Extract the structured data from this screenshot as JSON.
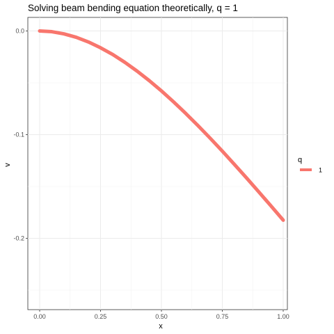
{
  "chart_data": {
    "type": "line",
    "title": "Solving beam bending equation theoretically, q = 1",
    "xlabel": "x",
    "ylabel": "v",
    "xlim": [
      0,
      1
    ],
    "ylim": [
      -0.26,
      0
    ],
    "x_ticks": [
      0,
      0.25,
      0.5,
      0.75,
      1
    ],
    "x_tick_labels": [
      "0.00",
      "0.25",
      "0.50",
      "0.75",
      "1.00"
    ],
    "y_ticks": [
      0,
      -0.1,
      -0.2
    ],
    "y_tick_labels": [
      "0.0",
      "-0.1",
      "-0.2"
    ],
    "grid": true,
    "legend": {
      "title": "q",
      "position": "right",
      "entries": [
        "1"
      ]
    },
    "series": [
      {
        "name": "1",
        "color": "#F8766D",
        "x": [
          0,
          0.05,
          0.1,
          0.15,
          0.2,
          0.25,
          0.3,
          0.35,
          0.4,
          0.45,
          0.5,
          0.55,
          0.6,
          0.65,
          0.7,
          0.75,
          0.8,
          0.85,
          0.9,
          0.95,
          1
        ],
        "y": [
          0,
          -0.0007,
          -0.0028,
          -0.0061,
          -0.0106,
          -0.0162,
          -0.0227,
          -0.0303,
          -0.0387,
          -0.0479,
          -0.0578,
          -0.0684,
          -0.0796,
          -0.0913,
          -0.1034,
          -0.1159,
          -0.1288,
          -0.1419,
          -0.1553,
          -0.1688,
          -0.1825
        ]
      }
    ]
  }
}
